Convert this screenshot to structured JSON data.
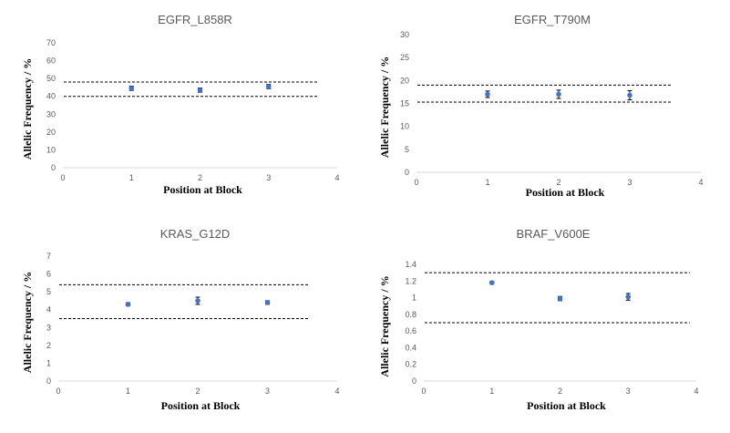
{
  "colors": {
    "marker": "#4472C4",
    "axis": "#D9D9D9",
    "threshold": "#000000",
    "text": "#595959"
  },
  "chart_data": [
    {
      "type": "scatter",
      "title": "EGFR_L858R",
      "xlabel": "Position at Block",
      "ylabel": "Allelic Frequency / %",
      "xlim": [
        0,
        4
      ],
      "ylim": [
        0,
        70
      ],
      "xticks": [
        "0",
        "1",
        "2",
        "3",
        "4"
      ],
      "yticks": [
        "0",
        "10",
        "20",
        "30",
        "40",
        "50",
        "60",
        "70"
      ],
      "x": [
        1,
        2,
        3
      ],
      "y": [
        44.5,
        43.5,
        45.5
      ],
      "error": [
        1.2,
        1.2,
        1.2
      ],
      "thresholds": [
        48,
        40
      ],
      "grid": false
    },
    {
      "type": "scatter",
      "title": "EGFR_T790M",
      "xlabel": "Position at Block",
      "ylabel": "Allelic Frequency / %",
      "xlim": [
        0,
        4
      ],
      "ylim": [
        0,
        30
      ],
      "xticks": [
        "0",
        "1",
        "2",
        "3",
        "4"
      ],
      "yticks": [
        "0",
        "5",
        "10",
        "15",
        "20",
        "25",
        "30"
      ],
      "x": [
        1,
        2,
        3
      ],
      "y": [
        17.0,
        17.0,
        16.8
      ],
      "error": [
        0.7,
        0.9,
        1.0
      ],
      "thresholds": [
        19,
        15.3
      ],
      "grid": false
    },
    {
      "type": "scatter",
      "title": "KRAS_G12D",
      "xlabel": "Position at Block",
      "ylabel": "Allelic Frequency / %",
      "xlim": [
        0,
        4
      ],
      "ylim": [
        0,
        7
      ],
      "xticks": [
        "0",
        "1",
        "2",
        "3",
        "4"
      ],
      "yticks": [
        "0",
        "1",
        "2",
        "3",
        "4",
        "5",
        "6",
        "7"
      ],
      "x": [
        1,
        2,
        3
      ],
      "y": [
        4.3,
        4.5,
        4.4
      ],
      "error": [
        0.08,
        0.2,
        0.1
      ],
      "thresholds": [
        5.4,
        3.5
      ],
      "grid": false
    },
    {
      "type": "scatter",
      "title": "BRAF_V600E",
      "xlabel": "Position at Block",
      "ylabel": "Allelic Frequency / %",
      "xlim": [
        0,
        4
      ],
      "ylim": [
        0,
        1.4
      ],
      "xticks": [
        "0",
        "1",
        "2",
        "3",
        "4"
      ],
      "yticks": [
        "0",
        "0.2",
        "0.4",
        "0.6",
        "0.8",
        "1",
        "1.2",
        "1.4"
      ],
      "x": [
        1,
        2,
        3
      ],
      "y": [
        1.18,
        0.99,
        1.01
      ],
      "error": [
        0.015,
        0.025,
        0.04
      ],
      "thresholds": [
        1.3,
        0.7
      ],
      "grid": false
    }
  ]
}
